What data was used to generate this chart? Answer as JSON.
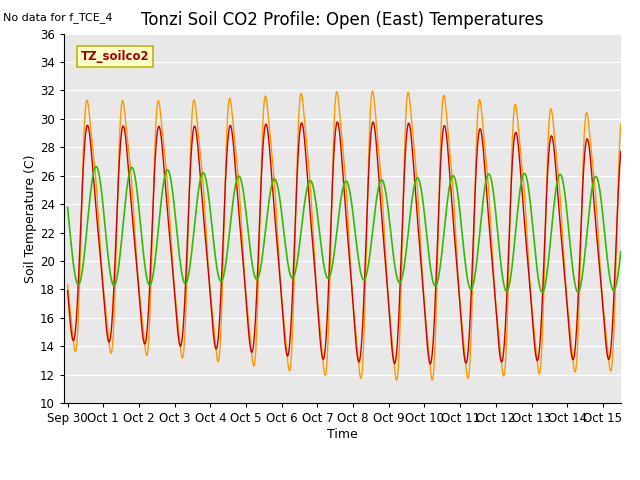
{
  "title": "Tonzi Soil CO2 Profile: Open (East) Temperatures",
  "no_data_text": "No data for f_TCE_4",
  "legend_box_label": "TZ_soilco2",
  "xlabel": "Time",
  "ylabel": "Soil Temperature (C)",
  "ylim": [
    10,
    36
  ],
  "xlim": [
    -0.1,
    15.5
  ],
  "color_2cm": "#cc0000",
  "color_4cm": "#ff9900",
  "color_8cm": "#33bb00",
  "bg_color": "#e8e8e8",
  "fig_bg": "#ffffff",
  "xtick_labels": [
    "Sep 30",
    "Oct 1",
    "Oct 2",
    "Oct 3",
    "Oct 4",
    "Oct 5",
    "Oct 6",
    "Oct 7",
    "Oct 8",
    "Oct 9",
    "Oct 10",
    "Oct 11",
    "Oct 12",
    "Oct 13",
    "Oct 14",
    "Oct 15"
  ],
  "xtick_positions": [
    0,
    1,
    2,
    3,
    4,
    5,
    6,
    7,
    8,
    9,
    10,
    11,
    12,
    13,
    14,
    15
  ],
  "ytick_positions": [
    10,
    12,
    14,
    16,
    18,
    20,
    22,
    24,
    26,
    28,
    30,
    32,
    34,
    36
  ],
  "title_fontsize": 12,
  "axis_label_fontsize": 9,
  "tick_fontsize": 8.5,
  "legend_box_facecolor": "#ffffcc",
  "legend_box_edgecolor": "#bbbb00",
  "legend_box_textcolor": "#aa0000"
}
